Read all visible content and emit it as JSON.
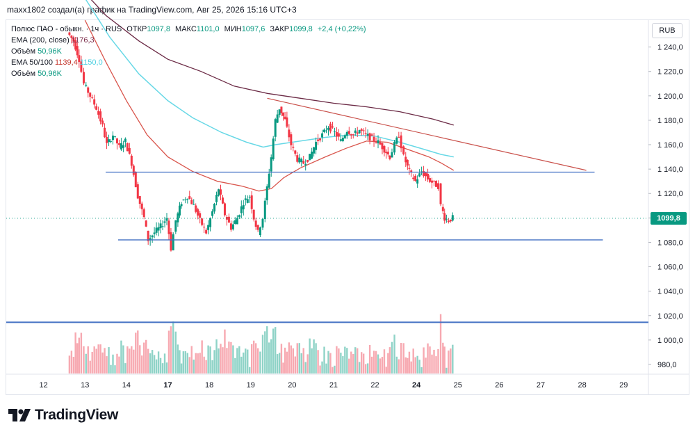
{
  "caption": "maxx1802 создал(а) график на TradingView.com, Авг 25, 2026 15:16 UTC+3",
  "legend": {
    "symbol": "Полюс ПАО - обыкн. · 1ч · RUS",
    "open_label": "ОТКР",
    "open": "1097,8",
    "high_label": "МАКС",
    "high": "1101,0",
    "low_label": "МИН",
    "low": "1097,6",
    "close_label": "ЗАКР",
    "close": "1099,8",
    "change": "+2,4 (+0,22%)",
    "ema200_label": "EMA (200, close)",
    "ema200_value": "1176,3",
    "volume_label": "Объём",
    "volume_value": "50,96K",
    "ema50_100_label": "EMA 50/100",
    "ema50_value": "1139,4",
    "ema100_value": "1150,0",
    "volume2_label": "Объём",
    "volume2_value": "50,96K"
  },
  "currency": "RUB",
  "last_price_tag": "1099,8",
  "brand": "TradingView",
  "colors": {
    "up": "#089981",
    "down": "#f23645",
    "ema200": "#6b2a45",
    "ema50": "#d9554c",
    "ema100": "#67d8e6",
    "hline": "#4472c4",
    "trend": "#c9504a"
  },
  "chart_data": {
    "type": "candlestick",
    "y_ticks": [
      "1 240,0",
      "1 220,0",
      "1 200,0",
      "1 180,0",
      "1 160,0",
      "1 140,0",
      "1 120,0",
      "1 100,0",
      "1 080,0",
      "1 060,0",
      "1 040,0",
      "1 020,0",
      "1 000,0",
      "980,0"
    ],
    "x_ticks": [
      {
        "label": "12",
        "x": 12.0,
        "bold": false
      },
      {
        "label": "13",
        "x": 13.0,
        "bold": false
      },
      {
        "label": "14",
        "x": 14.0,
        "bold": false
      },
      {
        "label": "17",
        "x": 15.0,
        "bold": true
      },
      {
        "label": "18",
        "x": 16.0,
        "bold": false
      },
      {
        "label": "19",
        "x": 17.0,
        "bold": false
      },
      {
        "label": "20",
        "x": 18.0,
        "bold": false
      },
      {
        "label": "21",
        "x": 19.0,
        "bold": false
      },
      {
        "label": "22",
        "x": 20.0,
        "bold": false
      },
      {
        "label": "24",
        "x": 21.0,
        "bold": true
      },
      {
        "label": "25",
        "x": 22.0,
        "bold": false
      },
      {
        "label": "26",
        "x": 23.0,
        "bold": false
      },
      {
        "label": "27",
        "x": 24.0,
        "bold": false
      },
      {
        "label": "28",
        "x": 25.0,
        "bold": false
      },
      {
        "label": "29",
        "x": 26.0,
        "bold": false
      }
    ],
    "y_range": [
      972,
      1262
    ],
    "x_range": [
      11.1,
      26.6
    ],
    "price_pivots": [
      [
        12.6,
        1252
      ],
      [
        12.75,
        1245
      ],
      [
        12.88,
        1230
      ],
      [
        13.0,
        1210
      ],
      [
        13.15,
        1200
      ],
      [
        13.3,
        1190
      ],
      [
        13.45,
        1175
      ],
      [
        13.55,
        1160
      ],
      [
        13.7,
        1168
      ],
      [
        13.85,
        1158
      ],
      [
        14.0,
        1163
      ],
      [
        14.15,
        1145
      ],
      [
        14.3,
        1118
      ],
      [
        14.45,
        1100
      ],
      [
        14.55,
        1082
      ],
      [
        14.7,
        1088
      ],
      [
        14.85,
        1093
      ],
      [
        15.0,
        1100
      ],
      [
        15.1,
        1075
      ],
      [
        15.22,
        1098
      ],
      [
        15.35,
        1113
      ],
      [
        15.5,
        1118
      ],
      [
        15.65,
        1110
      ],
      [
        15.8,
        1098
      ],
      [
        15.95,
        1088
      ],
      [
        16.1,
        1105
      ],
      [
        16.25,
        1124
      ],
      [
        16.4,
        1103
      ],
      [
        16.55,
        1092
      ],
      [
        16.7,
        1100
      ],
      [
        16.85,
        1113
      ],
      [
        17.0,
        1118
      ],
      [
        17.1,
        1100
      ],
      [
        17.2,
        1088
      ],
      [
        17.32,
        1100
      ],
      [
        17.42,
        1125
      ],
      [
        17.52,
        1150
      ],
      [
        17.62,
        1180
      ],
      [
        17.72,
        1190
      ],
      [
        17.85,
        1180
      ],
      [
        18.0,
        1160
      ],
      [
        18.15,
        1148
      ],
      [
        18.3,
        1145
      ],
      [
        18.45,
        1150
      ],
      [
        18.6,
        1162
      ],
      [
        18.75,
        1168
      ],
      [
        18.9,
        1175
      ],
      [
        19.05,
        1170
      ],
      [
        19.2,
        1163
      ],
      [
        19.35,
        1172
      ],
      [
        19.5,
        1168
      ],
      [
        19.65,
        1172
      ],
      [
        19.8,
        1168
      ],
      [
        19.95,
        1165
      ],
      [
        20.1,
        1162
      ],
      [
        20.25,
        1156
      ],
      [
        20.38,
        1150
      ],
      [
        20.5,
        1160
      ],
      [
        20.6,
        1168
      ],
      [
        20.72,
        1150
      ],
      [
        20.85,
        1138
      ],
      [
        21.0,
        1130
      ],
      [
        21.15,
        1138
      ],
      [
        21.3,
        1132
      ],
      [
        21.45,
        1128
      ],
      [
        21.55,
        1126
      ],
      [
        21.62,
        1110
      ],
      [
        21.7,
        1100
      ],
      [
        21.8,
        1098
      ],
      [
        21.9,
        1100
      ]
    ],
    "ema200": [
      [
        12.9,
        1288
      ],
      [
        13.5,
        1266
      ],
      [
        14.3,
        1245
      ],
      [
        15.0,
        1230
      ],
      [
        15.8,
        1220
      ],
      [
        16.6,
        1208
      ],
      [
        17.4,
        1202
      ],
      [
        18.2,
        1198
      ],
      [
        19.0,
        1194
      ],
      [
        19.8,
        1191
      ],
      [
        20.6,
        1187
      ],
      [
        21.4,
        1181
      ],
      [
        21.9,
        1176
      ]
    ],
    "ema100": [
      [
        13.0,
        1280
      ],
      [
        13.6,
        1248
      ],
      [
        14.3,
        1218
      ],
      [
        15.0,
        1196
      ],
      [
        15.6,
        1182
      ],
      [
        16.3,
        1170
      ],
      [
        16.9,
        1162
      ],
      [
        17.3,
        1158
      ],
      [
        17.6,
        1160
      ],
      [
        18.2,
        1163
      ],
      [
        18.8,
        1166
      ],
      [
        19.4,
        1168
      ],
      [
        20.0,
        1167
      ],
      [
        20.6,
        1162
      ],
      [
        21.2,
        1156
      ],
      [
        21.6,
        1152
      ],
      [
        21.9,
        1150
      ]
    ],
    "ema50": [
      [
        13.0,
        1262
      ],
      [
        13.5,
        1228
      ],
      [
        14.0,
        1196
      ],
      [
        14.5,
        1168
      ],
      [
        15.0,
        1150
      ],
      [
        15.6,
        1138
      ],
      [
        16.2,
        1130
      ],
      [
        16.8,
        1126
      ],
      [
        17.2,
        1122
      ],
      [
        17.5,
        1124
      ],
      [
        17.8,
        1133
      ],
      [
        18.2,
        1141
      ],
      [
        18.8,
        1150
      ],
      [
        19.3,
        1157
      ],
      [
        19.8,
        1163
      ],
      [
        20.3,
        1162
      ],
      [
        20.8,
        1156
      ],
      [
        21.3,
        1150
      ],
      [
        21.6,
        1145
      ],
      [
        21.9,
        1139
      ]
    ],
    "hlines": [
      {
        "y": 1137.5,
        "x_start": 13.5,
        "x_end": 25.3
      },
      {
        "y": 1082,
        "x_start": 13.8,
        "x_end": 25.5
      },
      {
        "y": 1014.5,
        "x_start": 11.1,
        "x_end": 26.6
      }
    ],
    "trendline": {
      "x1": 17.4,
      "y1": 1198,
      "x2": 25.1,
      "y2": 1139
    },
    "last_price": 1099.8
  }
}
